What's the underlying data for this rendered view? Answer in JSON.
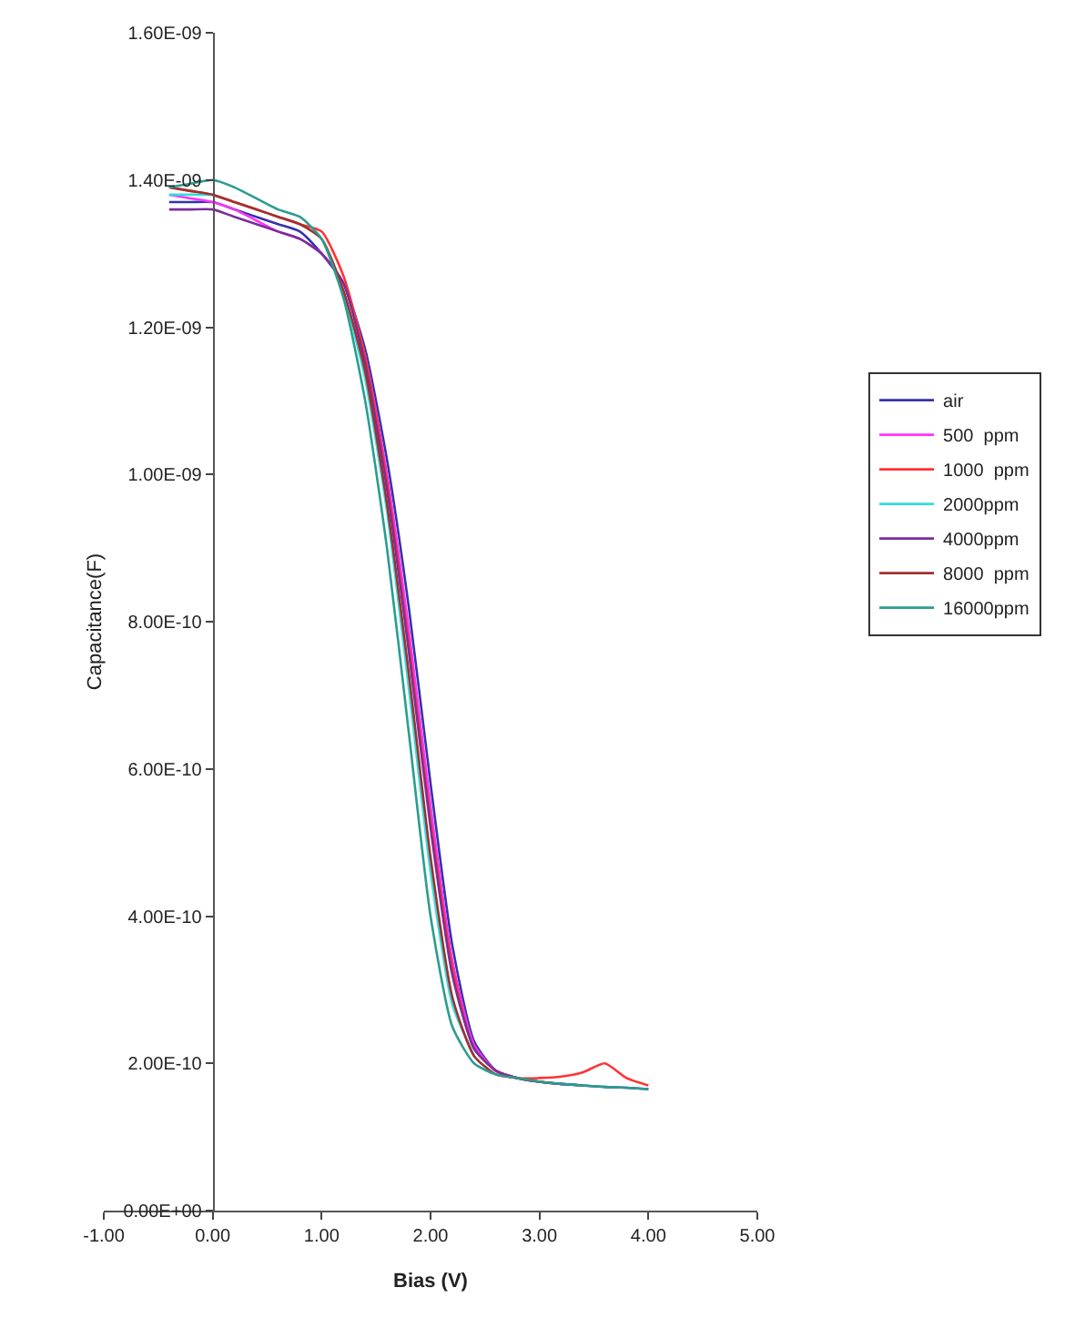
{
  "chart_data": {
    "type": "line",
    "xlabel": "Bias (V)",
    "ylabel": "Capacitance(F)",
    "x": [
      -0.4,
      -0.2,
      0,
      0.2,
      0.4,
      0.6,
      0.8,
      1.0,
      1.2,
      1.4,
      1.6,
      1.8,
      2.0,
      2.2,
      2.4,
      2.6,
      2.8,
      3.0,
      3.2,
      3.4,
      3.6,
      3.8,
      4.0
    ],
    "xlim": [
      -1,
      5
    ],
    "xticks": [
      {
        "value": -1,
        "label": "-1.00"
      },
      {
        "value": 0,
        "label": "0.00"
      },
      {
        "value": 1,
        "label": "1.00"
      },
      {
        "value": 2,
        "label": "2.00"
      },
      {
        "value": 3,
        "label": "3.00"
      },
      {
        "value": 4,
        "label": "4.00"
      },
      {
        "value": 5,
        "label": "5.00"
      }
    ],
    "ylim": [
      0,
      1.6e-09
    ],
    "yticks": [
      {
        "value": 0,
        "label": "0.00E+00"
      },
      {
        "value": 2e-10,
        "label": "2.00E-10"
      },
      {
        "value": 4e-10,
        "label": "4.00E-10"
      },
      {
        "value": 6e-10,
        "label": "6.00E-10"
      },
      {
        "value": 8e-10,
        "label": "8.00E-10"
      },
      {
        "value": 1e-09,
        "label": "1.00E-09"
      },
      {
        "value": 1.2e-09,
        "label": "1.20E-09"
      },
      {
        "value": 1.4e-09,
        "label": "1.40E-09"
      },
      {
        "value": 1.6e-09,
        "label": "1.60E-09"
      }
    ],
    "grid": false,
    "legend": "right",
    "marker": "none",
    "line_style": "solid",
    "series": [
      {
        "name": "air",
        "color": "#3333aa",
        "values": [
          1.37e-09,
          1.37e-09,
          1.37e-09,
          1.36e-09,
          1.35e-09,
          1.34e-09,
          1.33e-09,
          1.3e-09,
          1.26e-09,
          1.17e-09,
          1.02e-09,
          8.2e-10,
          5.8e-10,
          3.6e-10,
          2.3e-10,
          1.9e-10,
          1.8e-10,
          1.75e-10,
          1.72e-10,
          1.7e-10,
          1.68e-10,
          1.67e-10,
          1.65e-10
        ]
      },
      {
        "name": "500  ppm",
        "color": "#ff33ff",
        "values": [
          1.38e-09,
          1.375e-09,
          1.37e-09,
          1.36e-09,
          1.345e-09,
          1.33e-09,
          1.32e-09,
          1.3e-09,
          1.26e-09,
          1.16e-09,
          1e-09,
          7.9e-10,
          5.5e-10,
          3.4e-10,
          2.25e-10,
          1.9e-10,
          1.8e-10,
          null,
          null,
          null,
          null,
          null,
          null
        ]
      },
      {
        "name": "1000  ppm",
        "color": "#ff3333",
        "values": [
          1.39e-09,
          1.385e-09,
          1.38e-09,
          1.37e-09,
          1.36e-09,
          1.35e-09,
          1.34e-09,
          1.33e-09,
          1.27e-09,
          1.16e-09,
          9.9e-10,
          7.7e-10,
          5.3e-10,
          3.3e-10,
          2.2e-10,
          1.9e-10,
          1.8e-10,
          1.8e-10,
          1.82e-10,
          1.88e-10,
          2e-10,
          1.8e-10,
          1.7e-10
        ]
      },
      {
        "name": "2000ppm",
        "color": "#33dddd",
        "values": [
          1.38e-09,
          1.38e-09,
          1.38e-09,
          null,
          null,
          null,
          null,
          null,
          1.25e-09,
          1.13e-09,
          9.5e-10,
          7.1e-10,
          4.6e-10,
          2.8e-10,
          2.1e-10,
          null,
          null,
          null,
          null,
          null,
          null,
          null,
          null
        ]
      },
      {
        "name": "4000ppm",
        "color": "#7a2d9b",
        "values": [
          1.36e-09,
          1.36e-09,
          1.36e-09,
          1.35e-09,
          1.34e-09,
          1.33e-09,
          1.32e-09,
          1.3e-09,
          1.26e-09,
          1.15e-09,
          9.8e-10,
          7.6e-10,
          5.2e-10,
          3.2e-10,
          2.2e-10,
          1.9e-10,
          1.8e-10,
          1.75e-10,
          1.72e-10,
          1.7e-10,
          null,
          null,
          null
        ]
      },
      {
        "name": "8000  ppm",
        "color": "#a03030",
        "values": [
          1.39e-09,
          1.385e-09,
          1.38e-09,
          1.37e-09,
          1.36e-09,
          1.35e-09,
          1.34e-09,
          1.32e-09,
          1.25e-09,
          1.14e-09,
          9.6e-10,
          7.3e-10,
          4.8e-10,
          2.9e-10,
          2.1e-10,
          1.85e-10,
          1.8e-10,
          1.75e-10,
          1.72e-10,
          null,
          null,
          null,
          null
        ]
      },
      {
        "name": "16000ppm",
        "color": "#2a9d8f",
        "values": [
          1.39e-09,
          1.395e-09,
          1.4e-09,
          1.39e-09,
          1.375e-09,
          1.36e-09,
          1.35e-09,
          1.32e-09,
          1.24e-09,
          1.1e-09,
          9e-10,
          6.5e-10,
          4e-10,
          2.5e-10,
          2e-10,
          1.85e-10,
          1.8e-10,
          1.75e-10,
          1.72e-10,
          1.7e-10,
          1.68e-10,
          1.67e-10,
          1.65e-10
        ]
      }
    ]
  }
}
